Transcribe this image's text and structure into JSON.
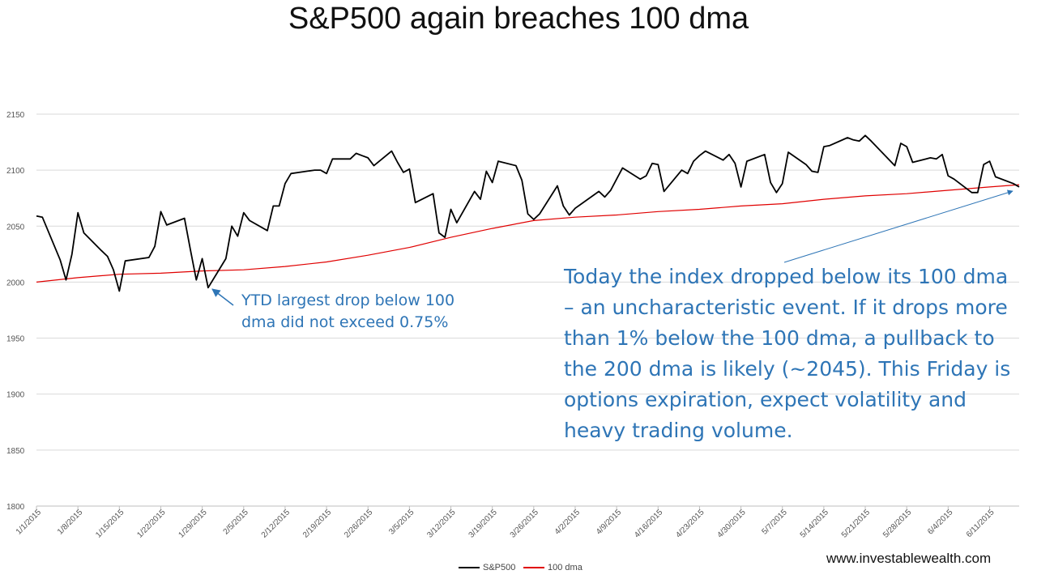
{
  "title": "S&P500 again breaches 100 dma",
  "annotations": {
    "left": "YTD largest drop below 100 dma did not exceed 0.75%",
    "right": "Today the index dropped below its 100 dma – an uncharacteristic event.  If it drops more than 1% below the 100 dma, a pullback to the 200 dma is likely  (~2045). This Friday is options expiration, expect volatility and heavy trading volume."
  },
  "website": "www.investablewealth.com",
  "colors": {
    "sp500": "#000000",
    "dma": "#e00000",
    "annotation": "#2E75B6",
    "grid": "#d9d9d9"
  },
  "chart_data": {
    "type": "line",
    "title": "S&P500 again breaches 100 dma",
    "xlabel": "",
    "ylabel": "",
    "ylim": [
      1800,
      2150
    ],
    "yticks": [
      1800,
      1850,
      1900,
      1950,
      2000,
      2050,
      2100,
      2150
    ],
    "xlim": [
      "2015-01-01",
      "2015-06-16"
    ],
    "xticks": [
      "1/1/2015",
      "1/8/2015",
      "1/15/2015",
      "1/22/2015",
      "1/29/2015",
      "2/5/2015",
      "2/12/2015",
      "2/19/2015",
      "2/26/2015",
      "3/5/2015",
      "3/12/2015",
      "3/19/2015",
      "3/26/2015",
      "4/2/2015",
      "4/9/2015",
      "4/16/2015",
      "4/23/2015",
      "4/30/2015",
      "5/7/2015",
      "5/14/2015",
      "5/21/2015",
      "5/28/2015",
      "6/4/2015",
      "6/11/2015"
    ],
    "grid": true,
    "legend_position": "bottom",
    "series": [
      {
        "name": "S&P500",
        "points": [
          [
            "2015-01-01",
            2059
          ],
          [
            "2015-01-02",
            2058
          ],
          [
            "2015-01-05",
            2020
          ],
          [
            "2015-01-06",
            2002
          ],
          [
            "2015-01-07",
            2025
          ],
          [
            "2015-01-08",
            2062
          ],
          [
            "2015-01-09",
            2044
          ],
          [
            "2015-01-12",
            2028
          ],
          [
            "2015-01-13",
            2023
          ],
          [
            "2015-01-14",
            2011
          ],
          [
            "2015-01-15",
            1992
          ],
          [
            "2015-01-16",
            2019
          ],
          [
            "2015-01-20",
            2022
          ],
          [
            "2015-01-21",
            2032
          ],
          [
            "2015-01-22",
            2063
          ],
          [
            "2015-01-23",
            2051
          ],
          [
            "2015-01-26",
            2057
          ],
          [
            "2015-01-27",
            2029
          ],
          [
            "2015-01-28",
            2002
          ],
          [
            "2015-01-29",
            2021
          ],
          [
            "2015-01-30",
            1995
          ],
          [
            "2015-02-02",
            2021
          ],
          [
            "2015-02-03",
            2050
          ],
          [
            "2015-02-04",
            2041
          ],
          [
            "2015-02-05",
            2062
          ],
          [
            "2015-02-06",
            2055
          ],
          [
            "2015-02-09",
            2046
          ],
          [
            "2015-02-10",
            2068
          ],
          [
            "2015-02-11",
            2068
          ],
          [
            "2015-02-12",
            2088
          ],
          [
            "2015-02-13",
            2097
          ],
          [
            "2015-02-17",
            2100
          ],
          [
            "2015-02-18",
            2100
          ],
          [
            "2015-02-19",
            2097
          ],
          [
            "2015-02-20",
            2110
          ],
          [
            "2015-02-23",
            2110
          ],
          [
            "2015-02-24",
            2115
          ],
          [
            "2015-02-25",
            2113
          ],
          [
            "2015-02-26",
            2111
          ],
          [
            "2015-02-27",
            2104
          ],
          [
            "2015-03-02",
            2117
          ],
          [
            "2015-03-03",
            2107
          ],
          [
            "2015-03-04",
            2098
          ],
          [
            "2015-03-05",
            2101
          ],
          [
            "2015-03-06",
            2071
          ],
          [
            "2015-03-09",
            2079
          ],
          [
            "2015-03-10",
            2044
          ],
          [
            "2015-03-11",
            2040
          ],
          [
            "2015-03-12",
            2065
          ],
          [
            "2015-03-13",
            2053
          ],
          [
            "2015-03-16",
            2081
          ],
          [
            "2015-03-17",
            2074
          ],
          [
            "2015-03-18",
            2099
          ],
          [
            "2015-03-19",
            2089
          ],
          [
            "2015-03-20",
            2108
          ],
          [
            "2015-03-23",
            2104
          ],
          [
            "2015-03-24",
            2091
          ],
          [
            "2015-03-25",
            2061
          ],
          [
            "2015-03-26",
            2056
          ],
          [
            "2015-03-27",
            2061
          ],
          [
            "2015-03-30",
            2086
          ],
          [
            "2015-03-31",
            2068
          ],
          [
            "2015-04-01",
            2060
          ],
          [
            "2015-04-02",
            2066
          ],
          [
            "2015-04-06",
            2081
          ],
          [
            "2015-04-07",
            2076
          ],
          [
            "2015-04-08",
            2082
          ],
          [
            "2015-04-09",
            2092
          ],
          [
            "2015-04-10",
            2102
          ],
          [
            "2015-04-13",
            2092
          ],
          [
            "2015-04-14",
            2095
          ],
          [
            "2015-04-15",
            2106
          ],
          [
            "2015-04-16",
            2105
          ],
          [
            "2015-04-17",
            2081
          ],
          [
            "2015-04-20",
            2100
          ],
          [
            "2015-04-21",
            2097
          ],
          [
            "2015-04-22",
            2108
          ],
          [
            "2015-04-23",
            2113
          ],
          [
            "2015-04-24",
            2117
          ],
          [
            "2015-04-27",
            2109
          ],
          [
            "2015-04-28",
            2114
          ],
          [
            "2015-04-29",
            2106
          ],
          [
            "2015-04-30",
            2085
          ],
          [
            "2015-05-01",
            2108
          ],
          [
            "2015-05-04",
            2114
          ],
          [
            "2015-05-05",
            2089
          ],
          [
            "2015-05-06",
            2080
          ],
          [
            "2015-05-07",
            2088
          ],
          [
            "2015-05-08",
            2116
          ],
          [
            "2015-05-11",
            2105
          ],
          [
            "2015-05-12",
            2099
          ],
          [
            "2015-05-13",
            2098
          ],
          [
            "2015-05-14",
            2121
          ],
          [
            "2015-05-15",
            2122
          ],
          [
            "2015-05-18",
            2129
          ],
          [
            "2015-05-19",
            2127
          ],
          [
            "2015-05-20",
            2126
          ],
          [
            "2015-05-21",
            2131
          ],
          [
            "2015-05-22",
            2126
          ],
          [
            "2015-05-26",
            2104
          ],
          [
            "2015-05-27",
            2124
          ],
          [
            "2015-05-28",
            2121
          ],
          [
            "2015-05-29",
            2107
          ],
          [
            "2015-06-01",
            2111
          ],
          [
            "2015-06-02",
            2110
          ],
          [
            "2015-06-03",
            2114
          ],
          [
            "2015-06-04",
            2095
          ],
          [
            "2015-06-05",
            2092
          ],
          [
            "2015-06-08",
            2080
          ],
          [
            "2015-06-09",
            2080
          ],
          [
            "2015-06-10",
            2105
          ],
          [
            "2015-06-11",
            2108
          ],
          [
            "2015-06-12",
            2094
          ],
          [
            "2015-06-15",
            2088
          ],
          [
            "2015-06-16",
            2085
          ]
        ]
      },
      {
        "name": "100 dma",
        "points": [
          [
            "2015-01-01",
            2000
          ],
          [
            "2015-01-08",
            2004
          ],
          [
            "2015-01-15",
            2007
          ],
          [
            "2015-01-22",
            2008
          ],
          [
            "2015-01-29",
            2010
          ],
          [
            "2015-02-05",
            2011
          ],
          [
            "2015-02-12",
            2014
          ],
          [
            "2015-02-19",
            2018
          ],
          [
            "2015-02-26",
            2024
          ],
          [
            "2015-03-05",
            2031
          ],
          [
            "2015-03-12",
            2040
          ],
          [
            "2015-03-19",
            2048
          ],
          [
            "2015-03-26",
            2055
          ],
          [
            "2015-04-02",
            2058
          ],
          [
            "2015-04-09",
            2060
          ],
          [
            "2015-04-16",
            2063
          ],
          [
            "2015-04-23",
            2065
          ],
          [
            "2015-04-30",
            2068
          ],
          [
            "2015-05-07",
            2070
          ],
          [
            "2015-05-14",
            2074
          ],
          [
            "2015-05-21",
            2077
          ],
          [
            "2015-05-28",
            2079
          ],
          [
            "2015-06-04",
            2082
          ],
          [
            "2015-06-11",
            2085
          ],
          [
            "2015-06-16",
            2087
          ]
        ]
      }
    ]
  }
}
